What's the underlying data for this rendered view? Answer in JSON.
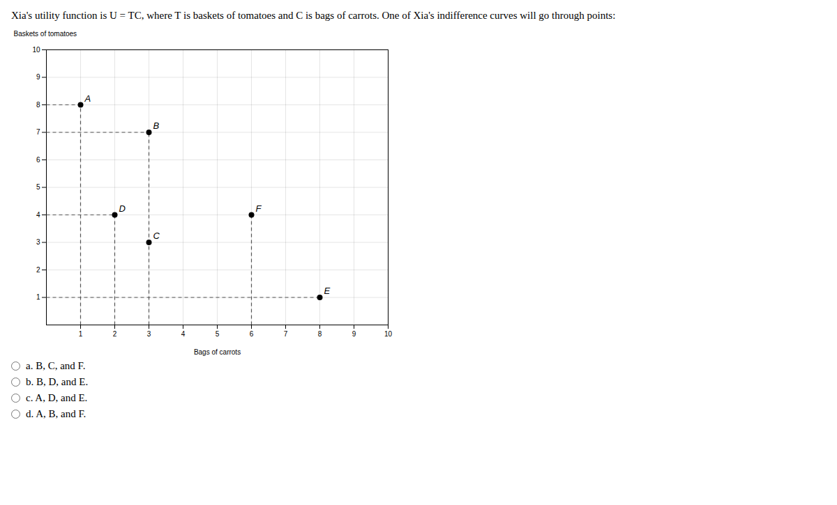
{
  "chart_data": {
    "type": "scatter",
    "title": "Xia's utility function is U = TC, where T is baskets of tomatoes and C is bags of carrots. One of Xia's indifference curves will go through points:",
    "xlabel": "Bags of carrots",
    "ylabel": "Baskets of tomatoes",
    "labels": [
      "A",
      "B",
      "C",
      "D",
      "E",
      "F"
    ],
    "x": [
      1,
      3,
      3,
      2,
      8,
      6
    ],
    "y": [
      8,
      7,
      3,
      4,
      1,
      4
    ],
    "color": "#000000",
    "marker": "circle",
    "xlim": [
      0,
      10
    ],
    "ylim": [
      0,
      10
    ],
    "xticks": [
      1,
      2,
      3,
      4,
      5,
      6,
      7,
      8,
      9,
      10
    ],
    "yticks": [
      1,
      2,
      3,
      4,
      5,
      6,
      7,
      8,
      9,
      10
    ],
    "grid": true,
    "reference_lines": {
      "line_style": "dashed",
      "color": "#555555",
      "segments": [
        {
          "x": [
            0,
            1
          ],
          "y": [
            8,
            8
          ]
        },
        {
          "x": [
            1,
            1
          ],
          "y": [
            0,
            8
          ]
        },
        {
          "x": [
            0,
            3
          ],
          "y": [
            7,
            7
          ]
        },
        {
          "x": [
            3,
            3
          ],
          "y": [
            0,
            7
          ]
        },
        {
          "x": [
            0,
            2
          ],
          "y": [
            4,
            4
          ]
        },
        {
          "x": [
            2,
            2
          ],
          "y": [
            0,
            4
          ]
        },
        {
          "x": [
            0,
            8
          ],
          "y": [
            1,
            1
          ]
        },
        {
          "x": [
            6,
            6
          ],
          "y": [
            0,
            4
          ]
        }
      ]
    },
    "annotations": [
      "a. B, C, and F.",
      "b. B, D, and E.",
      "c. A, D, and E.",
      "d. A, B, and F."
    ]
  }
}
